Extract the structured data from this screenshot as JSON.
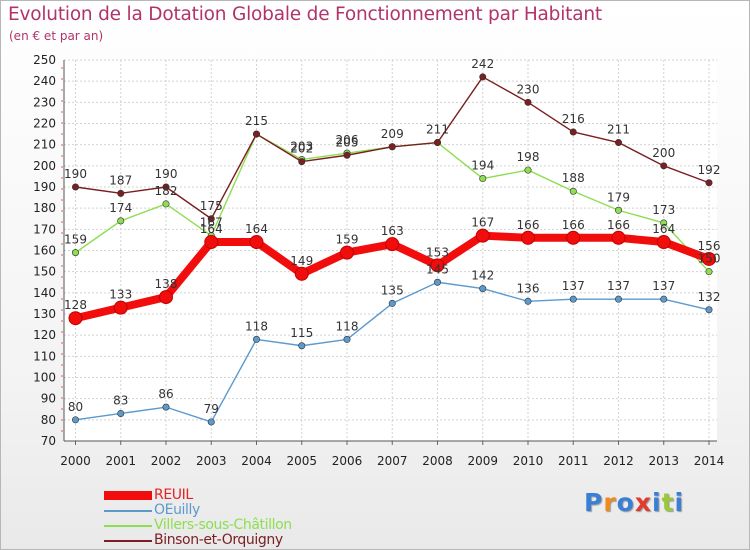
{
  "title": "Evolution de la Dotation Globale de Fonctionnement par Habitant",
  "subtitle": "(en € et par an)",
  "brand": {
    "text": "Proxiti",
    "letter_colors": [
      "#3a7fd6",
      "#f08a1c",
      "#3a7fd6",
      "#e23a2c",
      "#3a7fd6",
      "#9bc83a",
      "#3a7fd6"
    ]
  },
  "chart_data": {
    "type": "line",
    "title": "Evolution de la Dotation Globale de Fonctionnement par Habitant",
    "subtitle": "(en € et par an)",
    "xlabel": "",
    "ylabel": "",
    "x": [
      "2000",
      "2001",
      "2002",
      "2003",
      "2004",
      "2005",
      "2006",
      "2007",
      "2008",
      "2009",
      "2010",
      "2011",
      "2012",
      "2013",
      "2014"
    ],
    "ylim": [
      70,
      250
    ],
    "yticks": [
      70,
      80,
      90,
      100,
      110,
      120,
      130,
      140,
      150,
      160,
      170,
      180,
      190,
      200,
      210,
      220,
      230,
      240,
      250
    ],
    "grid": true,
    "legend_position": "bottom-left",
    "series": [
      {
        "name": "REUIL",
        "color": "#f20d0d",
        "emphasis": true,
        "values": [
          128,
          133,
          138,
          164,
          164,
          149,
          159,
          163,
          153,
          167,
          166,
          166,
          166,
          164,
          156
        ]
      },
      {
        "name": "OEuilly",
        "color": "#5c9acd",
        "emphasis": false,
        "values": [
          80,
          83,
          86,
          79,
          118,
          115,
          118,
          135,
          145,
          142,
          136,
          137,
          137,
          137,
          132
        ]
      },
      {
        "name": "Villers-sous-Châtillon",
        "color": "#8fde52",
        "emphasis": false,
        "values": [
          159,
          174,
          182,
          167,
          215,
          203,
          206,
          209,
          211,
          194,
          198,
          188,
          179,
          173,
          150
        ]
      },
      {
        "name": "Binson-et-Orquigny",
        "color": "#7a1f22",
        "emphasis": false,
        "values": [
          190,
          187,
          190,
          175,
          215,
          202,
          205,
          209,
          211,
          242,
          230,
          216,
          211,
          200,
          192
        ]
      }
    ],
    "data_labels": [
      {
        "series": 0,
        "labels": [
          "128",
          "133",
          "138",
          "164",
          "164",
          "149",
          "159",
          "163",
          "153",
          "167",
          "166",
          "166",
          "166",
          "164",
          "156"
        ]
      },
      {
        "series": 1,
        "labels": [
          "80",
          "83",
          "86",
          "79",
          "118",
          "115",
          "118",
          "135",
          "145",
          "142",
          "136",
          "137",
          "137",
          "137",
          "132"
        ]
      },
      {
        "series": 2,
        "labels": [
          "159",
          "174",
          "182",
          "167",
          "",
          "203",
          "206",
          "",
          "",
          "194",
          "198",
          "188",
          "179",
          "173",
          "150"
        ]
      },
      {
        "series": 3,
        "labels": [
          "190",
          "187",
          "190",
          "175",
          "215",
          "202",
          "205",
          "209",
          "211",
          "242",
          "230",
          "216",
          "211",
          "200",
          "192"
        ]
      }
    ]
  }
}
